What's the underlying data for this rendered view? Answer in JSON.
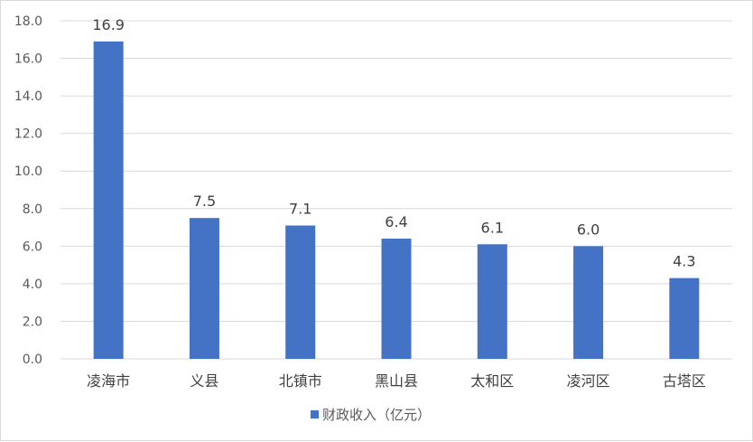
{
  "chart_data": {
    "type": "bar",
    "title": "",
    "xlabel": "",
    "ylabel": "",
    "categories": [
      "凌海市",
      "义县",
      "北镇市",
      "黑山县",
      "太和区",
      "凌河区",
      "古塔区"
    ],
    "series": [
      {
        "name": "财政收入（亿元）",
        "values": [
          16.9,
          7.5,
          7.1,
          6.4,
          6.1,
          6.0,
          4.3
        ],
        "color": "#4472c4"
      }
    ],
    "data_labels": [
      "16.9",
      "7.5",
      "7.1",
      "6.4",
      "6.1",
      "6.0",
      "4.3"
    ],
    "y_ticks": [
      "0.0",
      "2.0",
      "4.0",
      "6.0",
      "8.0",
      "10.0",
      "12.0",
      "14.0",
      "16.0",
      "18.0"
    ],
    "ylim": [
      0,
      18
    ],
    "grid": true,
    "legend_position": "bottom"
  }
}
